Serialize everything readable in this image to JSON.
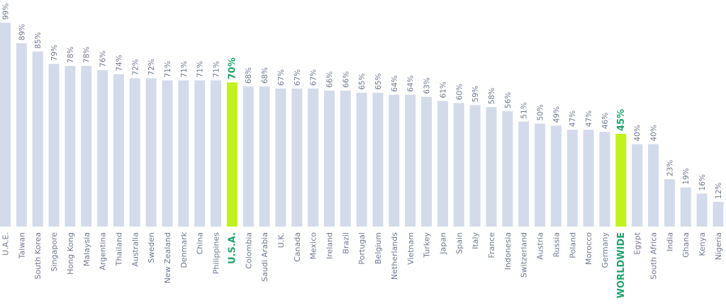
{
  "chart_data": {
    "type": "bar",
    "title": "",
    "xlabel": "",
    "ylabel": "",
    "ylim": [
      0,
      100
    ],
    "grid": false,
    "legend": "none",
    "colors": {
      "bar": "#d3dbeb",
      "highlight": "#c2f21c",
      "highlight_text": "#1fa36b",
      "text": "#6f7890"
    },
    "highlighted": [
      "U.S.A.",
      "WORLDWIDE"
    ],
    "categories": [
      "U.A.E.",
      "Taiwan",
      "South Korea",
      "Singapore",
      "Hong Kong",
      "Malaysia",
      "Argentina",
      "Thailand",
      "Australia",
      "Sweden",
      "New Zealand",
      "Denmark",
      "China",
      "Philippines",
      "U.S.A.",
      "Colombia",
      "Saudi Arabia",
      "U.K.",
      "Canada",
      "Mexico",
      "Ireland",
      "Brazil",
      "Portugal",
      "Belgium",
      "Netherlands",
      "Vietnam",
      "Turkey",
      "Japan",
      "Spain",
      "Italy",
      "France",
      "Indonesia",
      "Switzerland",
      "Austria",
      "Russia",
      "Poland",
      "Morocco",
      "Germany",
      "WORLDWIDE",
      "Egypt",
      "South Africa",
      "India",
      "Ghana",
      "Kenya",
      "Nigeria"
    ],
    "values": [
      99,
      89,
      85,
      79,
      78,
      78,
      76,
      74,
      72,
      72,
      71,
      71,
      71,
      71,
      70,
      68,
      68,
      67,
      67,
      67,
      66,
      66,
      65,
      65,
      64,
      64,
      63,
      61,
      60,
      59,
      58,
      56,
      51,
      50,
      49,
      47,
      47,
      46,
      45,
      40,
      40,
      23,
      19,
      16,
      12
    ],
    "value_labels": [
      "99%",
      "89%",
      "85%",
      "79%",
      "78%",
      "78%",
      "76%",
      "74%",
      "72%",
      "72%",
      "71%",
      "71%",
      "71%",
      "71%",
      "70%",
      "68%",
      "68%",
      "67%",
      "67%",
      "67%",
      "66%",
      "66%",
      "65%",
      "65%",
      "64%",
      "64%",
      "63%",
      "61%",
      "60%",
      "59%",
      "58%",
      "56%",
      "51%",
      "50%",
      "49%",
      "47%",
      "47%",
      "46%",
      "45%",
      "40%",
      "40%",
      "23%",
      "19%",
      "16%",
      "12%"
    ]
  }
}
